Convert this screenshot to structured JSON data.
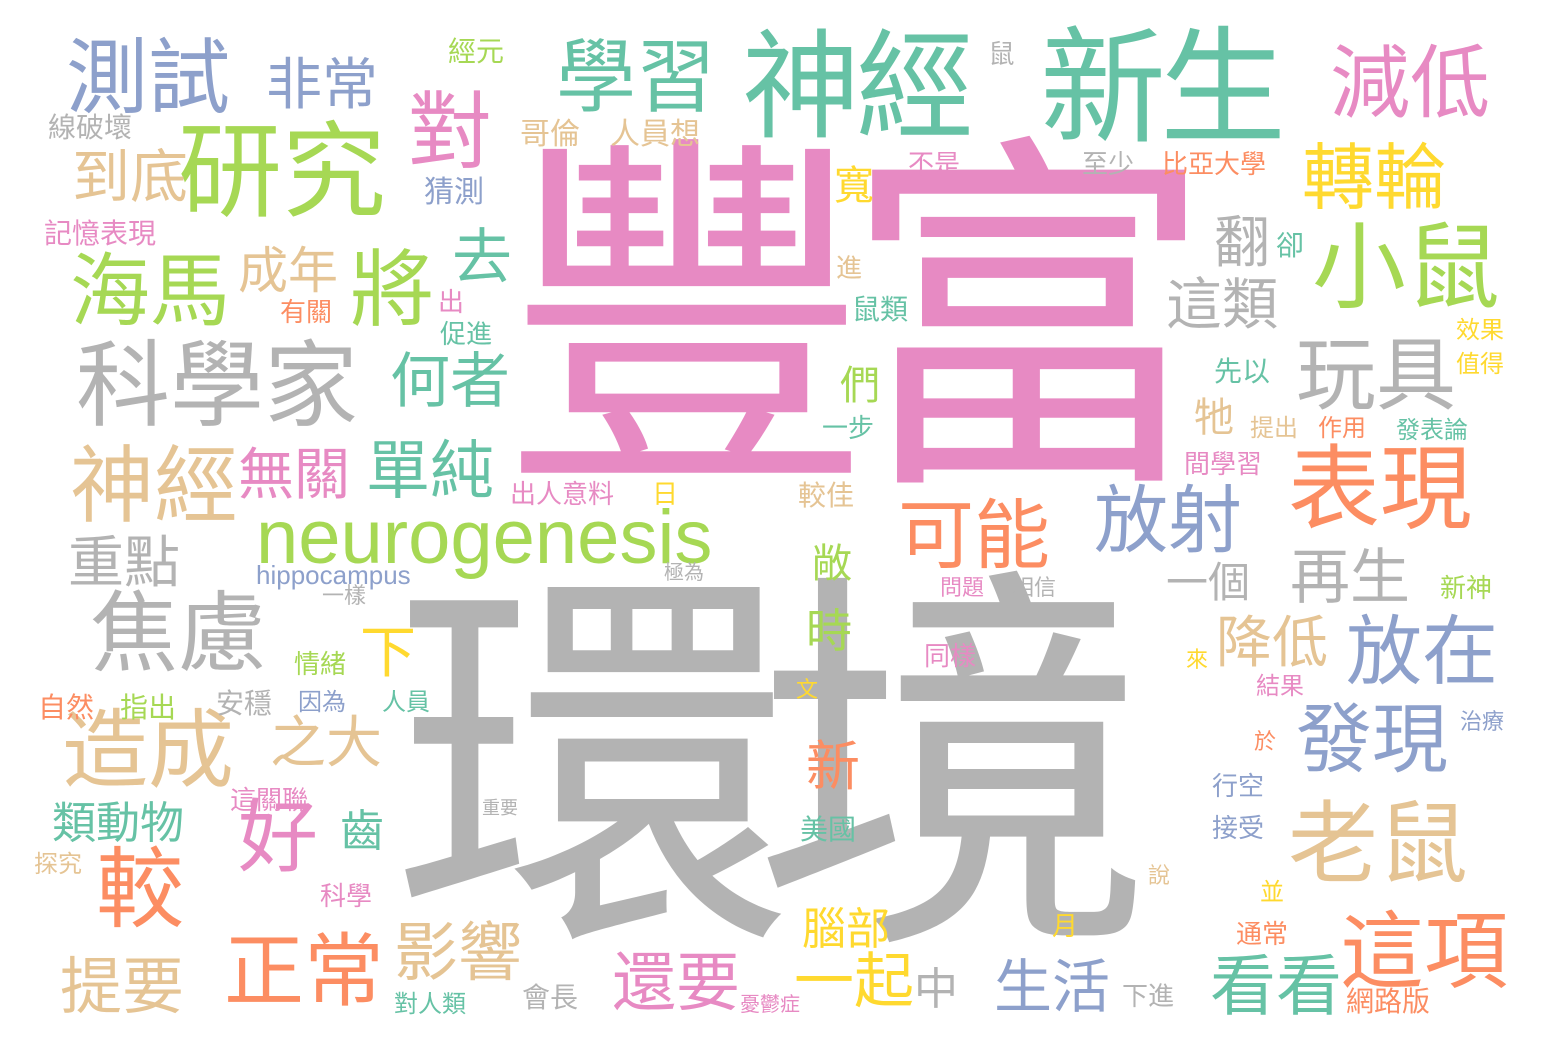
{
  "palette": {
    "pink": "#e78ac3",
    "gray": "#b3b3b3",
    "teal": "#66c2a5",
    "green": "#a6d854",
    "orange": "#fc8d62",
    "blue": "#8da0cb",
    "tan": "#e5c494",
    "yellow": "#ffd92f"
  },
  "words": [
    {
      "text": "豐富",
      "color": "pink"
    },
    {
      "text": "環境",
      "color": "gray"
    },
    {
      "text": "神經",
      "color": "teal"
    },
    {
      "text": "新生",
      "color": "teal"
    },
    {
      "text": "學習",
      "color": "teal"
    },
    {
      "text": "測試",
      "color": "blue"
    },
    {
      "text": "非常",
      "color": "blue"
    },
    {
      "text": "減低",
      "color": "pink"
    },
    {
      "text": "研究",
      "color": "green"
    },
    {
      "text": "對",
      "color": "pink"
    },
    {
      "text": "轉輪",
      "color": "yellow"
    },
    {
      "text": "小鼠",
      "color": "green"
    },
    {
      "text": "到底",
      "color": "tan"
    },
    {
      "text": "海馬",
      "color": "green"
    },
    {
      "text": "成年",
      "color": "tan"
    },
    {
      "text": "將",
      "color": "green"
    },
    {
      "text": "去",
      "color": "teal"
    },
    {
      "text": "科學家",
      "color": "gray"
    },
    {
      "text": "何者",
      "color": "teal"
    },
    {
      "text": "玩具",
      "color": "gray"
    },
    {
      "text": "這類",
      "color": "gray"
    },
    {
      "text": "翻",
      "color": "gray"
    },
    {
      "text": "神經",
      "color": "tan"
    },
    {
      "text": "無關",
      "color": "pink"
    },
    {
      "text": "單純",
      "color": "teal"
    },
    {
      "text": "neurogenesis",
      "color": "green"
    },
    {
      "text": "可能",
      "color": "orange"
    },
    {
      "text": "放射",
      "color": "blue"
    },
    {
      "text": "表現",
      "color": "orange"
    },
    {
      "text": "重點",
      "color": "gray"
    },
    {
      "text": "hippocampus",
      "color": "blue"
    },
    {
      "text": "焦慮",
      "color": "gray"
    },
    {
      "text": "一個",
      "color": "gray"
    },
    {
      "text": "再生",
      "color": "gray"
    },
    {
      "text": "放在",
      "color": "blue"
    },
    {
      "text": "時",
      "color": "green"
    },
    {
      "text": "降低",
      "color": "tan"
    },
    {
      "text": "造成",
      "color": "tan"
    },
    {
      "text": "之大",
      "color": "tan"
    },
    {
      "text": "好",
      "color": "pink"
    },
    {
      "text": "發現",
      "color": "blue"
    },
    {
      "text": "老鼠",
      "color": "tan"
    },
    {
      "text": "新",
      "color": "orange"
    },
    {
      "text": "較",
      "color": "orange"
    },
    {
      "text": "類動物",
      "color": "teal"
    },
    {
      "text": "齒",
      "color": "teal"
    },
    {
      "text": "正常",
      "color": "orange"
    },
    {
      "text": "影響",
      "color": "tan"
    },
    {
      "text": "還要",
      "color": "pink"
    },
    {
      "text": "一起",
      "color": "yellow"
    },
    {
      "text": "中",
      "color": "gray"
    },
    {
      "text": "生活",
      "color": "blue"
    },
    {
      "text": "看看",
      "color": "teal"
    },
    {
      "text": "這項",
      "color": "orange"
    },
    {
      "text": "提要",
      "color": "tan"
    },
    {
      "text": "腦部",
      "color": "yellow"
    },
    {
      "text": "下",
      "color": "yellow"
    },
    {
      "text": "經元",
      "color": "green"
    },
    {
      "text": "鼠",
      "color": "gray"
    },
    {
      "text": "線破壞",
      "color": "gray"
    },
    {
      "text": "哥倫",
      "color": "tan"
    },
    {
      "text": "人員想",
      "color": "tan"
    },
    {
      "text": "寬",
      "color": "yellow"
    },
    {
      "text": "不是",
      "color": "pink"
    },
    {
      "text": "至少",
      "color": "gray"
    },
    {
      "text": "比亞大學",
      "color": "orange"
    },
    {
      "text": "猜測",
      "color": "blue"
    },
    {
      "text": "記憶表現",
      "color": "pink"
    },
    {
      "text": "卻",
      "color": "teal"
    },
    {
      "text": "進",
      "color": "tan"
    },
    {
      "text": "有關",
      "color": "orange"
    },
    {
      "text": "出",
      "color": "pink"
    },
    {
      "text": "促進",
      "color": "teal"
    },
    {
      "text": "鼠類",
      "color": "teal"
    },
    {
      "text": "效果",
      "color": "yellow"
    },
    {
      "text": "值得",
      "color": "yellow"
    },
    {
      "text": "們",
      "color": "green"
    },
    {
      "text": "先以",
      "color": "teal"
    },
    {
      "text": "牠",
      "color": "tan"
    },
    {
      "text": "一步",
      "color": "teal"
    },
    {
      "text": "提出",
      "color": "tan"
    },
    {
      "text": "作用",
      "color": "orange"
    },
    {
      "text": "發表論",
      "color": "teal"
    },
    {
      "text": "間學習",
      "color": "pink"
    },
    {
      "text": "出人意料",
      "color": "pink"
    },
    {
      "text": "日",
      "color": "yellow"
    },
    {
      "text": "較佳",
      "color": "tan"
    },
    {
      "text": "敞",
      "color": "green"
    },
    {
      "text": "極為",
      "color": "gray"
    },
    {
      "text": "一樣",
      "color": "gray"
    },
    {
      "text": "問題",
      "color": "pink"
    },
    {
      "text": "相信",
      "color": "gray"
    },
    {
      "text": "新神",
      "color": "green"
    },
    {
      "text": "情緒",
      "color": "green"
    },
    {
      "text": "同樣",
      "color": "pink"
    },
    {
      "text": "來",
      "color": "yellow"
    },
    {
      "text": "文",
      "color": "yellow"
    },
    {
      "text": "結果",
      "color": "pink"
    },
    {
      "text": "自然",
      "color": "orange"
    },
    {
      "text": "指出",
      "color": "green"
    },
    {
      "text": "安穩",
      "color": "gray"
    },
    {
      "text": "因為",
      "color": "blue"
    },
    {
      "text": "人員",
      "color": "teal"
    },
    {
      "text": "治療",
      "color": "blue"
    },
    {
      "text": "於",
      "color": "orange"
    },
    {
      "text": "這關聯",
      "color": "pink"
    },
    {
      "text": "行空",
      "color": "blue"
    },
    {
      "text": "重要",
      "color": "gray"
    },
    {
      "text": "美國",
      "color": "teal"
    },
    {
      "text": "接受",
      "color": "blue"
    },
    {
      "text": "探究",
      "color": "tan"
    },
    {
      "text": "科學",
      "color": "pink"
    },
    {
      "text": "說",
      "color": "tan"
    },
    {
      "text": "並",
      "color": "yellow"
    },
    {
      "text": "月",
      "color": "yellow"
    },
    {
      "text": "通常",
      "color": "orange"
    },
    {
      "text": "會長",
      "color": "gray"
    },
    {
      "text": "對人類",
      "color": "teal"
    },
    {
      "text": "憂鬱症",
      "color": "pink"
    },
    {
      "text": "下進",
      "color": "gray"
    },
    {
      "text": "網路版",
      "color": "orange"
    }
  ]
}
